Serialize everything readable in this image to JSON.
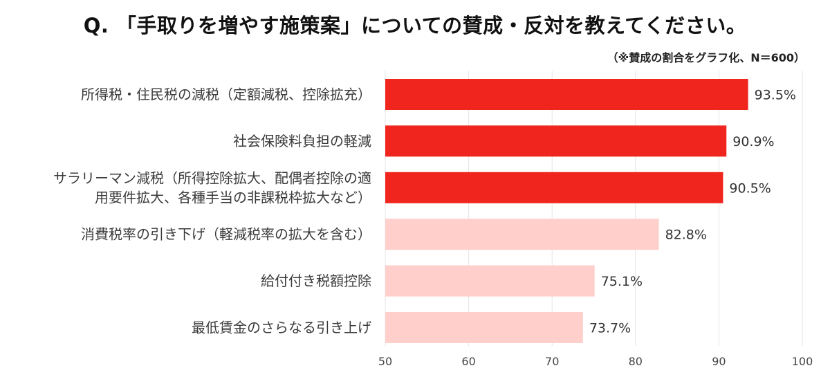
{
  "title": "Q. 「手取りを増やす施策案」についての賛成・反対を教えてください。",
  "subtitle": "（※賛成の割合をグラフ化、N＝600）",
  "colors": {
    "dark_bar": "#f0261e",
    "light_bar": "#ffcfcc",
    "grid": "#e4e4e4"
  },
  "chart_data": {
    "type": "bar",
    "orientation": "horizontal",
    "categories": [
      [
        "所得税・住民税の減税（定額減税、控除拡充）"
      ],
      [
        "社会保険料負担の軽減"
      ],
      [
        "サラリーマン減税（所得控除拡大、配偶者控除の適",
        "用要件拡大、各種手当の非課税枠拡大など）"
      ],
      [
        "消費税率の引き下げ（軽減税率の拡大を含む）"
      ],
      [
        "給付付き税額控除"
      ],
      [
        "最低賃金のさらなる引き上げ"
      ]
    ],
    "values": [
      93.5,
      90.9,
      90.5,
      82.8,
      75.1,
      73.7
    ],
    "value_labels": [
      "93.5%",
      "90.9%",
      "90.5%",
      "82.8%",
      "75.1%",
      "73.7%"
    ],
    "highlight": [
      true,
      true,
      true,
      false,
      false,
      false
    ],
    "xlim": [
      50,
      100
    ],
    "xticks": [
      50,
      60,
      70,
      80,
      90,
      100
    ],
    "grid": true
  }
}
